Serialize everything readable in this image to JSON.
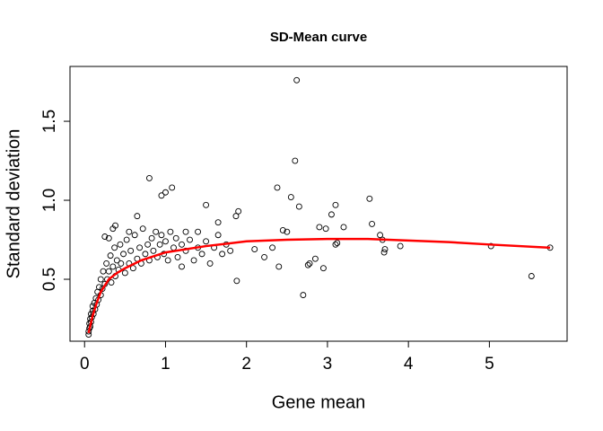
{
  "chart_data": {
    "type": "scatter",
    "title": "SD-Mean curve",
    "xlabel": "Gene mean",
    "ylabel": "Standard deviation",
    "xlim": [
      -0.18,
      5.96
    ],
    "ylim": [
      0.108,
      1.847
    ],
    "xticks": [
      0,
      1,
      2,
      3,
      4,
      5
    ],
    "yticks": [
      0.5,
      {
        "value": 1,
        "label": "1.0"
      },
      1.5
    ],
    "color": "#000000",
    "x": [
      0.05,
      0.05,
      0.06,
      0.06,
      0.07,
      0.07,
      0.08,
      0.08,
      0.09,
      0.1,
      0.1,
      0.11,
      0.12,
      0.13,
      0.14,
      0.15,
      0.16,
      0.17,
      0.18,
      0.2,
      0.2,
      0.22,
      0.23,
      0.25,
      0.27,
      0.28,
      0.3,
      0.32,
      0.33,
      0.35,
      0.37,
      0.38,
      0.4,
      0.42,
      0.44,
      0.45,
      0.48,
      0.5,
      0.52,
      0.55,
      0.57,
      0.6,
      0.62,
      0.65,
      0.68,
      0.7,
      0.72,
      0.75,
      0.78,
      0.8,
      0.83,
      0.85,
      0.88,
      0.9,
      0.93,
      0.95,
      0.98,
      1.0,
      1.03,
      1.06,
      1.1,
      1.13,
      1.15,
      1.2,
      1.25,
      1.3,
      1.35,
      1.4,
      1.45,
      1.5,
      1.55,
      1.6,
      1.65,
      1.7,
      1.75,
      1.8,
      1.4,
      1.2,
      1.25,
      2.62,
      2.6,
      0.8,
      1.08,
      1.0,
      0.95,
      2.38,
      2.55,
      2.65,
      3.52,
      3.1,
      3.05,
      3.55,
      3.2,
      2.9,
      2.98,
      2.7,
      5.52,
      5.75,
      5.02,
      3.9,
      3.7,
      3.71,
      3.65,
      3.68,
      3.1,
      3.12,
      2.95,
      2.85,
      2.78,
      2.76,
      2.4,
      2.32,
      2.22,
      2.1,
      1.88,
      1.9,
      1.87,
      1.5,
      1.65,
      2.45,
      2.5,
      0.65,
      0.55,
      0.38,
      0.35,
      0.3,
      0.25
    ],
    "values": [
      0.15,
      0.17,
      0.19,
      0.22,
      0.2,
      0.25,
      0.23,
      0.28,
      0.26,
      0.3,
      0.33,
      0.28,
      0.35,
      0.31,
      0.38,
      0.34,
      0.42,
      0.37,
      0.45,
      0.4,
      0.5,
      0.44,
      0.55,
      0.47,
      0.6,
      0.5,
      0.55,
      0.65,
      0.48,
      0.58,
      0.7,
      0.52,
      0.62,
      0.56,
      0.72,
      0.6,
      0.66,
      0.54,
      0.75,
      0.6,
      0.68,
      0.57,
      0.78,
      0.63,
      0.7,
      0.6,
      0.82,
      0.66,
      0.72,
      0.62,
      0.76,
      0.68,
      0.8,
      0.64,
      0.72,
      0.78,
      0.66,
      0.74,
      0.62,
      0.8,
      0.7,
      0.76,
      0.64,
      0.72,
      0.68,
      0.75,
      0.62,
      0.7,
      0.66,
      0.74,
      0.6,
      0.7,
      0.78,
      0.66,
      0.72,
      0.68,
      0.8,
      0.58,
      0.8,
      1.76,
      1.25,
      1.14,
      1.08,
      1.05,
      1.03,
      1.08,
      1.02,
      0.96,
      1.01,
      0.97,
      0.91,
      0.85,
      0.83,
      0.83,
      0.82,
      0.4,
      0.52,
      0.7,
      0.71,
      0.71,
      0.67,
      0.69,
      0.78,
      0.75,
      0.72,
      0.73,
      0.57,
      0.63,
      0.6,
      0.59,
      0.58,
      0.7,
      0.64,
      0.69,
      0.49,
      0.93,
      0.9,
      0.97,
      0.86,
      0.81,
      0.8,
      0.9,
      0.8,
      0.84,
      0.82,
      0.76,
      0.77
    ],
    "curve": {
      "color": "#ff0000",
      "x": [
        0.05,
        0.1,
        0.15,
        0.2,
        0.3,
        0.4,
        0.5,
        0.7,
        1.0,
        1.5,
        2.0,
        2.5,
        3.0,
        3.5,
        4.0,
        4.5,
        5.0,
        5.75
      ],
      "values": [
        0.16,
        0.27,
        0.35,
        0.42,
        0.5,
        0.54,
        0.57,
        0.62,
        0.67,
        0.71,
        0.74,
        0.75,
        0.755,
        0.755,
        0.745,
        0.735,
        0.72,
        0.7
      ]
    }
  }
}
